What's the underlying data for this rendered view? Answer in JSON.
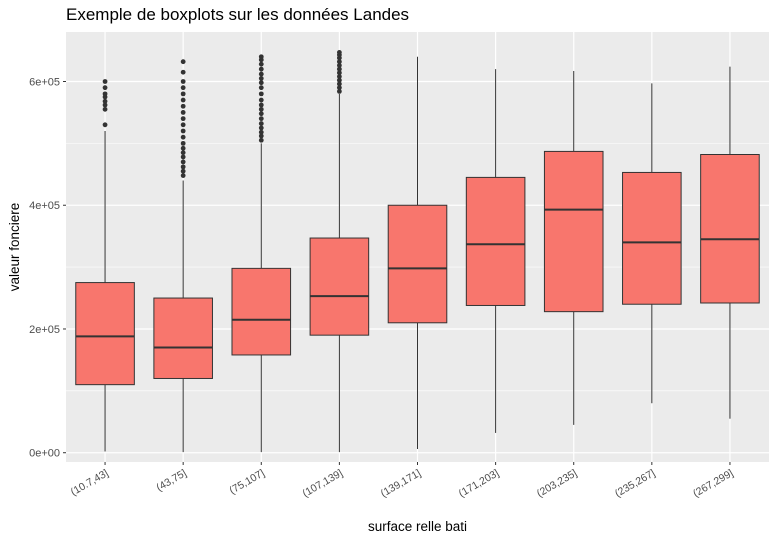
{
  "chart_data": {
    "type": "boxplot",
    "title": "Exemple de boxplots sur les données Landes",
    "xlabel": "surface relle bati",
    "ylabel": "valeur fonciere",
    "ylim": [
      -15000,
      680000
    ],
    "y_ticks": [
      {
        "value": 0,
        "label": "0e+00"
      },
      {
        "value": 200000,
        "label": "2e+05"
      },
      {
        "value": 400000,
        "label": "4e+05"
      },
      {
        "value": 600000,
        "label": "6e+05"
      }
    ],
    "categories": [
      "(10.7,43]",
      "(43,75]",
      "(75,107]",
      "(107,139]",
      "(139,171]",
      "(171,203]",
      "(203,235]",
      "(235,267]",
      "(267,299]"
    ],
    "boxes": [
      {
        "whisker_low": 2000,
        "q1": 110000,
        "median": 188000,
        "q3": 275000,
        "whisker_high": 520000,
        "outliers": [
          530000,
          555000,
          562000,
          568000,
          575000,
          580000,
          590000,
          600000
        ]
      },
      {
        "whisker_low": 1000,
        "q1": 120000,
        "median": 170000,
        "q3": 250000,
        "whisker_high": 440000,
        "outliers": [
          448000,
          455000,
          462000,
          470000,
          478000,
          485000,
          492000,
          500000,
          510000,
          520000,
          530000,
          540000,
          550000,
          560000,
          570000,
          580000,
          590000,
          600000,
          615000,
          632000
        ]
      },
      {
        "whisker_low": 1000,
        "q1": 158000,
        "median": 215000,
        "q3": 298000,
        "whisker_high": 500000,
        "outliers": [
          505000,
          512000,
          518000,
          525000,
          532000,
          540000,
          548000,
          555000,
          562000,
          570000,
          580000,
          590000,
          598000,
          605000,
          612000,
          620000,
          628000,
          635000,
          640000
        ]
      },
      {
        "whisker_low": 1000,
        "q1": 190000,
        "median": 253000,
        "q3": 347000,
        "whisker_high": 580000,
        "outliers": [
          584000,
          590000,
          596000,
          602000,
          608000,
          614000,
          620000,
          626000,
          632000,
          638000,
          643000,
          647000
        ]
      },
      {
        "whisker_low": 6000,
        "q1": 210000,
        "median": 298000,
        "q3": 400000,
        "whisker_high": 640000,
        "outliers": []
      },
      {
        "whisker_low": 32000,
        "q1": 238000,
        "median": 337000,
        "q3": 445000,
        "whisker_high": 620000,
        "outliers": []
      },
      {
        "whisker_low": 45000,
        "q1": 228000,
        "median": 393000,
        "q3": 487000,
        "whisker_high": 617000,
        "outliers": []
      },
      {
        "whisker_low": 80000,
        "q1": 240000,
        "median": 340000,
        "q3": 453000,
        "whisker_high": 597000,
        "outliers": []
      },
      {
        "whisker_low": 55000,
        "q1": 242000,
        "median": 345000,
        "q3": 482000,
        "whisker_high": 624000,
        "outliers": []
      }
    ],
    "fill_color": "#F8766D",
    "line_color": "#333333",
    "panel_background": "#EBEBEB",
    "grid_color": "#FFFFFF",
    "grid": true,
    "legend": "none"
  }
}
